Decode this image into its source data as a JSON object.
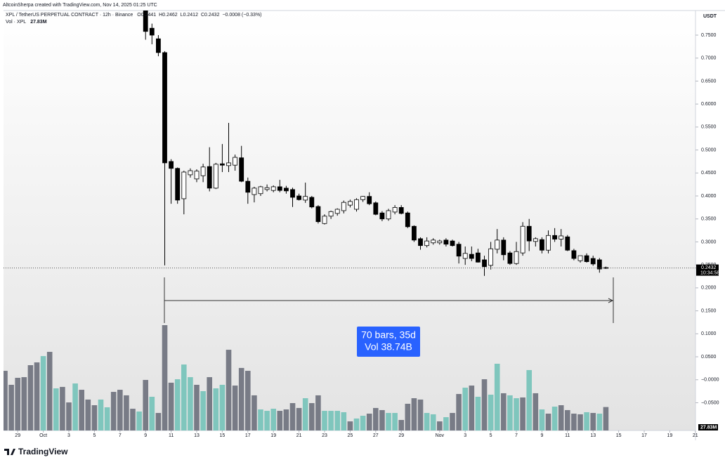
{
  "chart_data": {
    "type": "candlestick",
    "credit": "AltcoinSherpa created with TradingView.com, Nov 14, 2025 01:25 UTC",
    "symbol": "XPL / TetherUS PERPETUAL CONTRACT · 12h · Binance",
    "ohlc_labels": [
      "O",
      "H",
      "L",
      "C"
    ],
    "change": "−0.0008 (−0.33%)",
    "currency": "USDT",
    "countdown": "10:34:58",
    "up_color": "#ffffff",
    "down_color": "#000000",
    "x": [
      22,
      23,
      24,
      25,
      26,
      27,
      28,
      29,
      30,
      31,
      32,
      33,
      34,
      35,
      36,
      37,
      38,
      39,
      40,
      41,
      42,
      43,
      44,
      45,
      46,
      47,
      48,
      49,
      50,
      51,
      52,
      53,
      54,
      55,
      56,
      57,
      58,
      59,
      60,
      61,
      62,
      63,
      64,
      65,
      66,
      67,
      68,
      69,
      70,
      71,
      72,
      73,
      74,
      75,
      76,
      77,
      78,
      79,
      80,
      81,
      82,
      83,
      84,
      85,
      86,
      87,
      88,
      89,
      90,
      91,
      92,
      93,
      94
    ],
    "open": [
      0.804,
      0.765,
      0.742,
      0.712,
      0.475,
      0.46,
      0.394,
      0.446,
      0.437,
      0.444,
      0.464,
      0.417,
      0.47,
      0.466,
      0.467,
      0.483,
      0.432,
      0.403,
      0.405,
      0.414,
      0.412,
      0.42,
      0.417,
      0.414,
      0.4,
      0.391,
      0.397,
      0.377,
      0.34,
      0.356,
      0.362,
      0.368,
      0.38,
      0.371,
      0.392,
      0.399,
      0.385,
      0.363,
      0.35,
      0.365,
      0.375,
      0.363,
      0.334,
      0.307,
      0.292,
      0.298,
      0.298,
      0.304,
      0.302,
      0.295,
      0.264,
      0.273,
      0.276,
      0.261,
      0.249,
      0.284,
      0.304,
      0.276,
      0.253,
      0.276,
      0.334,
      0.301,
      0.305,
      0.282,
      0.314,
      0.306,
      0.311,
      0.281,
      0.259,
      0.27,
      0.264,
      0.261,
      0.2441
    ],
    "high": [
      0.82,
      0.775,
      0.75,
      0.715,
      0.48,
      0.462,
      0.455,
      0.46,
      0.458,
      0.47,
      0.506,
      0.472,
      0.513,
      0.559,
      0.49,
      0.509,
      0.44,
      0.42,
      0.422,
      0.425,
      0.423,
      0.435,
      0.422,
      0.418,
      0.405,
      0.429,
      0.4,
      0.38,
      0.36,
      0.368,
      0.373,
      0.39,
      0.392,
      0.395,
      0.4,
      0.408,
      0.388,
      0.367,
      0.372,
      0.38,
      0.38,
      0.366,
      0.336,
      0.31,
      0.31,
      0.308,
      0.305,
      0.308,
      0.305,
      0.3,
      0.29,
      0.29,
      0.285,
      0.27,
      0.3,
      0.328,
      0.31,
      0.28,
      0.3,
      0.343,
      0.35,
      0.31,
      0.31,
      0.325,
      0.33,
      0.328,
      0.315,
      0.285,
      0.27,
      0.275,
      0.27,
      0.265,
      0.2462
    ],
    "low": [
      0.74,
      0.73,
      0.704,
      0.249,
      0.383,
      0.383,
      0.36,
      0.44,
      0.43,
      0.43,
      0.41,
      0.415,
      0.452,
      0.452,
      0.455,
      0.43,
      0.383,
      0.386,
      0.4,
      0.41,
      0.408,
      0.408,
      0.405,
      0.376,
      0.39,
      0.385,
      0.373,
      0.34,
      0.338,
      0.35,
      0.357,
      0.362,
      0.375,
      0.366,
      0.387,
      0.38,
      0.358,
      0.345,
      0.346,
      0.36,
      0.36,
      0.33,
      0.3,
      0.283,
      0.288,
      0.294,
      0.294,
      0.29,
      0.29,
      0.253,
      0.25,
      0.258,
      0.255,
      0.226,
      0.24,
      0.275,
      0.26,
      0.25,
      0.25,
      0.27,
      0.28,
      0.29,
      0.275,
      0.275,
      0.3,
      0.29,
      0.28,
      0.26,
      0.255,
      0.255,
      0.248,
      0.233,
      0.2412
    ],
    "close": [
      0.758,
      0.75,
      0.712,
      0.472,
      0.46,
      0.391,
      0.452,
      0.455,
      0.454,
      0.463,
      0.417,
      0.469,
      0.467,
      0.472,
      0.484,
      0.432,
      0.408,
      0.417,
      0.42,
      0.418,
      0.42,
      0.412,
      0.411,
      0.397,
      0.392,
      0.399,
      0.376,
      0.344,
      0.356,
      0.366,
      0.371,
      0.386,
      0.388,
      0.392,
      0.399,
      0.383,
      0.36,
      0.35,
      0.368,
      0.375,
      0.362,
      0.333,
      0.304,
      0.292,
      0.302,
      0.304,
      0.302,
      0.295,
      0.292,
      0.269,
      0.275,
      0.264,
      0.256,
      0.246,
      0.285,
      0.304,
      0.272,
      0.253,
      0.279,
      0.334,
      0.302,
      0.307,
      0.282,
      0.314,
      0.306,
      0.313,
      0.282,
      0.264,
      0.27,
      0.257,
      0.252,
      0.241,
      0.2432
    ],
    "volume": {
      "name": "Vol · XPL",
      "last_label": "27.83M",
      "up_color": "#7fc6bd",
      "down_color": "#787b86",
      "ylim": [
        0,
        100
      ],
      "values": [
        70.8,
        54.2,
        62.5,
        63.3,
        77.5,
        80.8,
        88.3,
        93.3,
        50,
        51.7,
        33.3,
        55.8,
        48.3,
        36.7,
        30,
        36.7,
        27.5,
        45.8,
        48.3,
        41.7,
        25.8,
        22.5,
        60,
        40,
        20.8,
        125,
        56.7,
        60.8,
        78.3,
        63.3,
        54.2,
        46.7,
        63.3,
        50,
        54.2,
        95.8,
        53.3,
        74.2,
        70.8,
        41.7,
        25,
        23.3,
        25.8,
        23.3,
        25,
        32.5,
        26.7,
        38.3,
        32.5,
        41.7,
        23.3,
        23.3,
        23.3,
        21.7,
        10.8,
        14.2,
        17.5,
        20,
        26.7,
        24.2,
        20.8,
        20.8,
        12.5,
        31.7,
        38.3,
        36.7,
        20.8,
        19.2,
        10.8,
        15.8,
        20.8,
        43.3,
        50.8,
        53.3,
        40,
        60.8,
        42.5,
        79.2,
        44.2,
        41.7,
        38.3,
        39.2,
        71.7,
        44.2,
        25,
        20,
        28.3,
        30,
        24.2,
        20,
        19.2,
        21.7,
        20.8,
        20,
        27.83
      ],
      "up": [
        false,
        false,
        false,
        false,
        false,
        false,
        true,
        false,
        true,
        false,
        false,
        true,
        false,
        false,
        false,
        true,
        true,
        false,
        false,
        false,
        false,
        true,
        false,
        true,
        false,
        false,
        false,
        true,
        true,
        true,
        false,
        true,
        false,
        true,
        true,
        false,
        false,
        false,
        false,
        false,
        true,
        true,
        true,
        false,
        false,
        false,
        false,
        true,
        false,
        false,
        true,
        true,
        true,
        true,
        false,
        true,
        true,
        false,
        false,
        false,
        true,
        true,
        false,
        false,
        false,
        false,
        true,
        true,
        false,
        true,
        false,
        false,
        true,
        false,
        true,
        false,
        true,
        true,
        false,
        true,
        true,
        false,
        true,
        false,
        true,
        false,
        true,
        false,
        false,
        false,
        false,
        true,
        false,
        true,
        false
      ]
    },
    "xlim": [
      -0.22,
      108.02
    ],
    "xticks": [
      {
        "value": 2,
        "label": "29"
      },
      {
        "value": 6,
        "label": "Oct"
      },
      {
        "value": 10,
        "label": "3"
      },
      {
        "value": 14,
        "label": "5"
      },
      {
        "value": 18,
        "label": "7"
      },
      {
        "value": 22,
        "label": "9"
      },
      {
        "value": 26,
        "label": "11"
      },
      {
        "value": 30,
        "label": "13"
      },
      {
        "value": 34,
        "label": "15"
      },
      {
        "value": 38,
        "label": "17"
      },
      {
        "value": 42,
        "label": "19"
      },
      {
        "value": 46,
        "label": "21"
      },
      {
        "value": 50,
        "label": "23"
      },
      {
        "value": 54,
        "label": "25"
      },
      {
        "value": 58,
        "label": "27"
      },
      {
        "value": 62,
        "label": "29"
      },
      {
        "value": 68,
        "label": "Nov"
      },
      {
        "value": 72,
        "label": "3"
      },
      {
        "value": 76,
        "label": "5"
      },
      {
        "value": 80,
        "label": "7"
      },
      {
        "value": 84,
        "label": "9"
      },
      {
        "value": 88,
        "label": "11"
      },
      {
        "value": 92,
        "label": "13"
      },
      {
        "value": 96,
        "label": "15"
      },
      {
        "value": 100,
        "label": "17"
      },
      {
        "value": 104,
        "label": "19"
      },
      {
        "value": 108,
        "label": "21"
      }
    ],
    "ylim": [
      -0.1104,
      0.8035
    ],
    "yticks": [
      {
        "value": 0.75,
        "label": "0.7500"
      },
      {
        "value": 0.7,
        "label": "0.7000"
      },
      {
        "value": 0.65,
        "label": "0.6500"
      },
      {
        "value": 0.6,
        "label": "0.6000"
      },
      {
        "value": 0.55,
        "label": "0.5500"
      },
      {
        "value": 0.5,
        "label": "0.5000"
      },
      {
        "value": 0.45,
        "label": "0.4500"
      },
      {
        "value": 0.4,
        "label": "0.4000"
      },
      {
        "value": 0.35,
        "label": "0.3500"
      },
      {
        "value": 0.3,
        "label": "0.3000"
      },
      {
        "value": 0.25,
        "label": "0.2500"
      },
      {
        "value": 0.2,
        "label": "0.2000"
      },
      {
        "value": 0.15,
        "label": "0.1500"
      },
      {
        "value": 0.1,
        "label": "0.1000"
      },
      {
        "value": 0.05,
        "label": "0.0500"
      },
      {
        "value": 0,
        "label": "−0.0000"
      },
      {
        "value": -0.05,
        "label": "−0.0500"
      }
    ],
    "grid": false,
    "measure": [
      "70 bars, 35d",
      "Vol 38.74B"
    ],
    "brand": "TradingView"
  }
}
